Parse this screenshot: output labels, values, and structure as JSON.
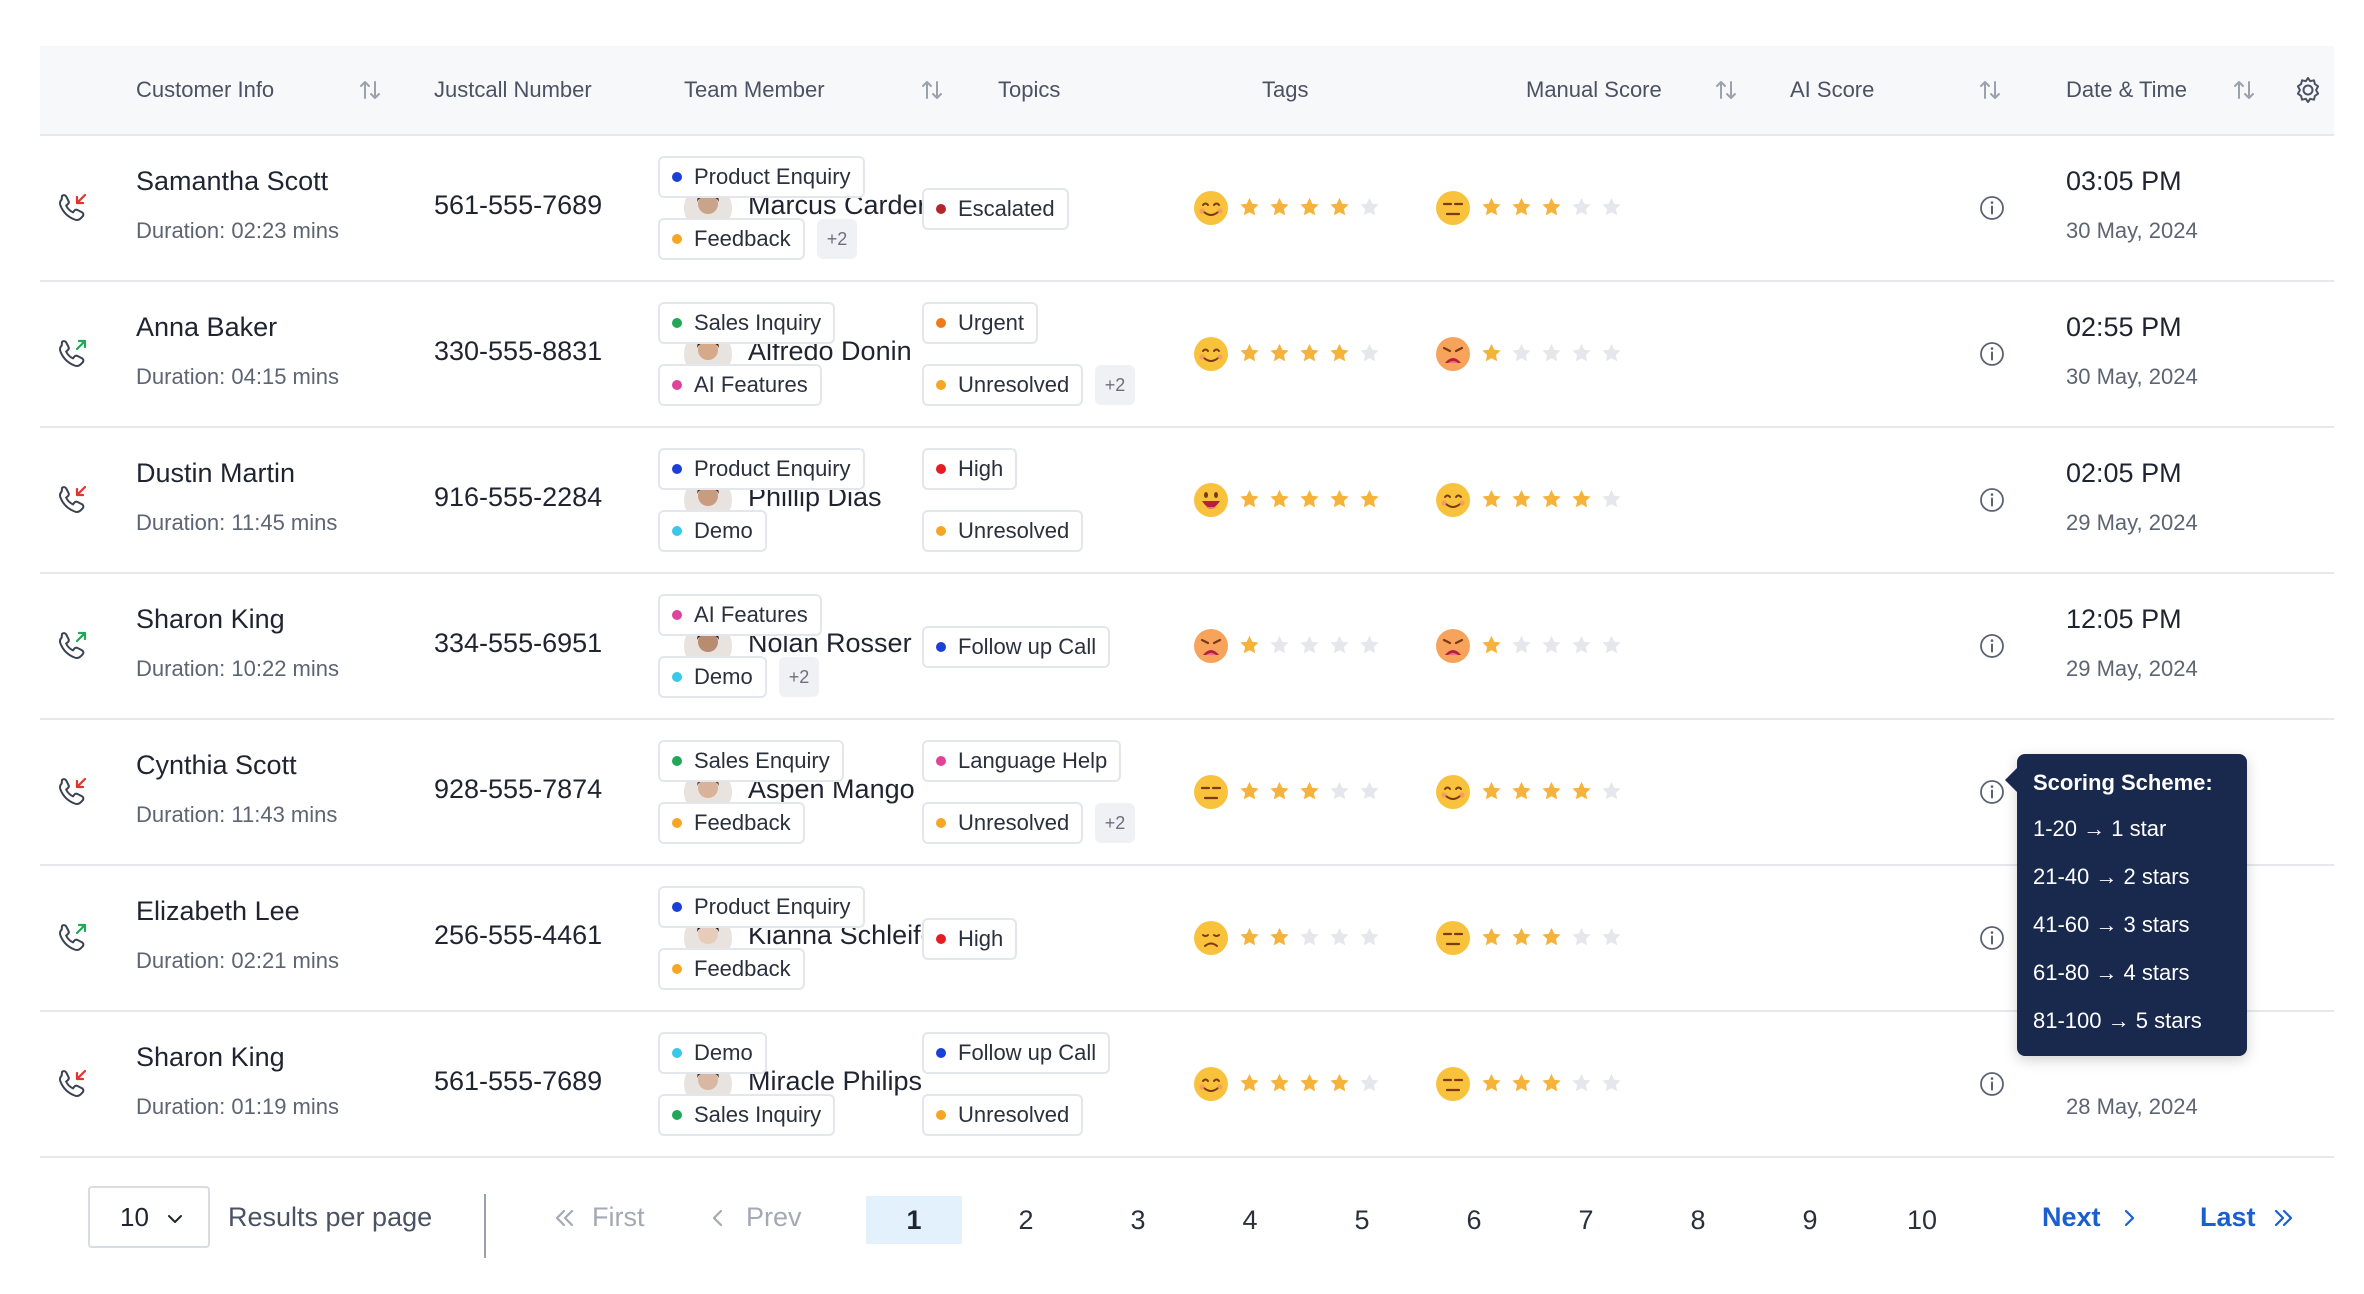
{
  "header": {
    "customer_info": "Customer Info",
    "justcall_number": "Justcall Number",
    "team_member": "Team Member",
    "topics": "Topics",
    "tags": "Tags",
    "manual_score": "Manual Score",
    "ai_score": "AI Score",
    "date_time": "Date & Time"
  },
  "colors": {
    "blue": "#1c3fd6",
    "orange": "#f5a623",
    "green": "#22a658",
    "pink": "#e0439a",
    "cyan": "#37c8ea",
    "darkred": "#b3262b",
    "red": "#e51c23",
    "amber": "#f07a1a",
    "star_filled": "#f6b33a",
    "star_empty": "#e6e7ec",
    "link": "#1b5fcf",
    "tooltip_bg": "#19294d"
  },
  "rows": [
    {
      "direction": "incoming",
      "name": "Samantha Scott",
      "duration": "Duration: 02:23 mins",
      "phone": "561-555-7689",
      "member": "Marcus Carder",
      "topics": [
        {
          "label": "Product Enquiry",
          "color": "#1c3fd6"
        },
        {
          "label": "Feedback",
          "color": "#f5a623"
        }
      ],
      "topics_more": "+2",
      "tags": [
        {
          "label": "Escalated",
          "color": "#b3262b"
        }
      ],
      "tags_more": "",
      "manual_face": "happy",
      "manual_stars": 4,
      "ai_face": "neutral",
      "ai_stars": 3,
      "time": "03:05 PM",
      "date": "30 May, 2024"
    },
    {
      "direction": "outgoing",
      "name": "Anna Baker",
      "duration": "Duration: 04:15 mins",
      "phone": "330-555-8831",
      "member": "Alfredo Donin",
      "topics": [
        {
          "label": "Sales Inquiry",
          "color": "#22a658"
        },
        {
          "label": "AI Features",
          "color": "#e0439a"
        }
      ],
      "topics_more": "",
      "tags": [
        {
          "label": "Urgent",
          "color": "#f07a1a"
        },
        {
          "label": "Unresolved",
          "color": "#f5a623"
        }
      ],
      "tags_more": "+2",
      "manual_face": "happy",
      "manual_stars": 4,
      "ai_face": "angry",
      "ai_stars": 1,
      "time": "02:55 PM",
      "date": "30 May, 2024"
    },
    {
      "direction": "incoming",
      "name": "Dustin Martin",
      "duration": "Duration: 11:45 mins",
      "phone": "916-555-2284",
      "member": "Phillip Dias",
      "topics": [
        {
          "label": "Product Enquiry",
          "color": "#1c3fd6"
        },
        {
          "label": "Demo",
          "color": "#37c8ea"
        }
      ],
      "topics_more": "",
      "tags": [
        {
          "label": "High",
          "color": "#e51c23"
        },
        {
          "label": "Unresolved",
          "color": "#f5a623"
        }
      ],
      "tags_more": "",
      "manual_face": "grin",
      "manual_stars": 5,
      "ai_face": "happy",
      "ai_stars": 4,
      "time": "02:05 PM",
      "date": "29 May, 2024"
    },
    {
      "direction": "outgoing",
      "name": "Sharon King",
      "duration": "Duration: 10:22 mins",
      "phone": "334-555-6951",
      "member": "Nolan Rosser",
      "topics": [
        {
          "label": "AI Features",
          "color": "#e0439a"
        },
        {
          "label": "Demo",
          "color": "#37c8ea"
        }
      ],
      "topics_more": "+2",
      "tags": [
        {
          "label": "Follow up Call",
          "color": "#1c3fd6"
        }
      ],
      "tags_more": "",
      "manual_face": "angry",
      "manual_stars": 1,
      "ai_face": "angry",
      "ai_stars": 1,
      "time": "12:05 PM",
      "date": "29 May, 2024"
    },
    {
      "direction": "incoming",
      "name": "Cynthia Scott",
      "duration": "Duration: 11:43 mins",
      "phone": "928-555-7874",
      "member": "Aspen Mango",
      "topics": [
        {
          "label": "Sales Enquiry",
          "color": "#22a658"
        },
        {
          "label": "Feedback",
          "color": "#f5a623"
        }
      ],
      "topics_more": "",
      "tags": [
        {
          "label": "Language Help",
          "color": "#e0439a"
        },
        {
          "label": "Unresolved",
          "color": "#f5a623"
        }
      ],
      "tags_more": "+2",
      "manual_face": "neutral",
      "manual_stars": 3,
      "ai_face": "happy",
      "ai_stars": 4,
      "time": "",
      "date": ""
    },
    {
      "direction": "outgoing",
      "name": "Elizabeth Lee",
      "duration": "Duration: 02:21 mins",
      "phone": "256-555-4461",
      "member": "Kianna Schleifer",
      "topics": [
        {
          "label": "Product Enquiry",
          "color": "#1c3fd6"
        },
        {
          "label": "Feedback",
          "color": "#f5a623"
        }
      ],
      "topics_more": "",
      "tags": [
        {
          "label": "High",
          "color": "#e51c23"
        }
      ],
      "tags_more": "",
      "manual_face": "sad",
      "manual_stars": 2,
      "ai_face": "neutral",
      "ai_stars": 3,
      "time": "",
      "date": ""
    },
    {
      "direction": "incoming",
      "name": "Sharon King",
      "duration": "Duration: 01:19 mins",
      "phone": "561-555-7689",
      "member": "Miracle Philips",
      "topics": [
        {
          "label": "Demo",
          "color": "#37c8ea"
        },
        {
          "label": "Sales Inquiry",
          "color": "#22a658"
        }
      ],
      "topics_more": "",
      "tags": [
        {
          "label": "Follow up Call",
          "color": "#1c3fd6"
        },
        {
          "label": "Unresolved",
          "color": "#f5a623"
        }
      ],
      "tags_more": "",
      "manual_face": "happy",
      "manual_stars": 4,
      "ai_face": "neutral",
      "ai_stars": 3,
      "time": "",
      "date": "28 May, 2024"
    }
  ],
  "tooltip": {
    "title": "Scoring Scheme:",
    "lines": [
      "1-20 → 1 star",
      "21-40 → 2 stars",
      "41-60 → 3 stars",
      "61-80 → 4 stars",
      "81-100 → 5 stars"
    ]
  },
  "pagination": {
    "per_page_value": "10",
    "per_page_label": "Results per page",
    "first": "First",
    "prev": "Prev",
    "pages": [
      "1",
      "2",
      "3",
      "4",
      "5",
      "6",
      "7",
      "8",
      "9",
      "10"
    ],
    "current_page": "1",
    "next": "Next",
    "last": "Last"
  }
}
